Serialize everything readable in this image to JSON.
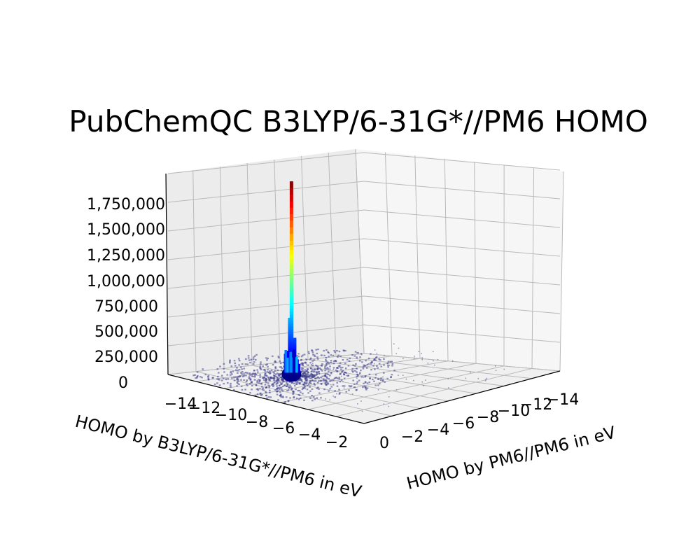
{
  "chart_data": {
    "type": "3d-bar-histogram",
    "title": "PubChemQC B3LYP/6-31G*//PM6 HOMO",
    "xlabel": "HOMO by B3LYP/6-31G*//PM6 in eV",
    "ylabel": "HOMO by PM6//PM6 in eV",
    "zlabel": "",
    "x_ticks": [
      "−14",
      "−12",
      "−10",
      "−8",
      "−6",
      "−4",
      "−2"
    ],
    "y_ticks": [
      "0",
      "−2",
      "−4",
      "−6",
      "−8",
      "−10",
      "−12",
      "−14"
    ],
    "z_ticks": [
      "0",
      "250,000",
      "500,000",
      "750,000",
      "1,000,000",
      "1,250,000",
      "1,500,000",
      "1,750,000"
    ],
    "zlim": [
      0,
      1900000
    ],
    "peak": {
      "x": -5.6,
      "y": -9.2,
      "count": 1850000
    },
    "colormap": "jet",
    "grid": true,
    "pane_color": "#f2f2f2",
    "scatter_color": "#3c3c8c"
  }
}
